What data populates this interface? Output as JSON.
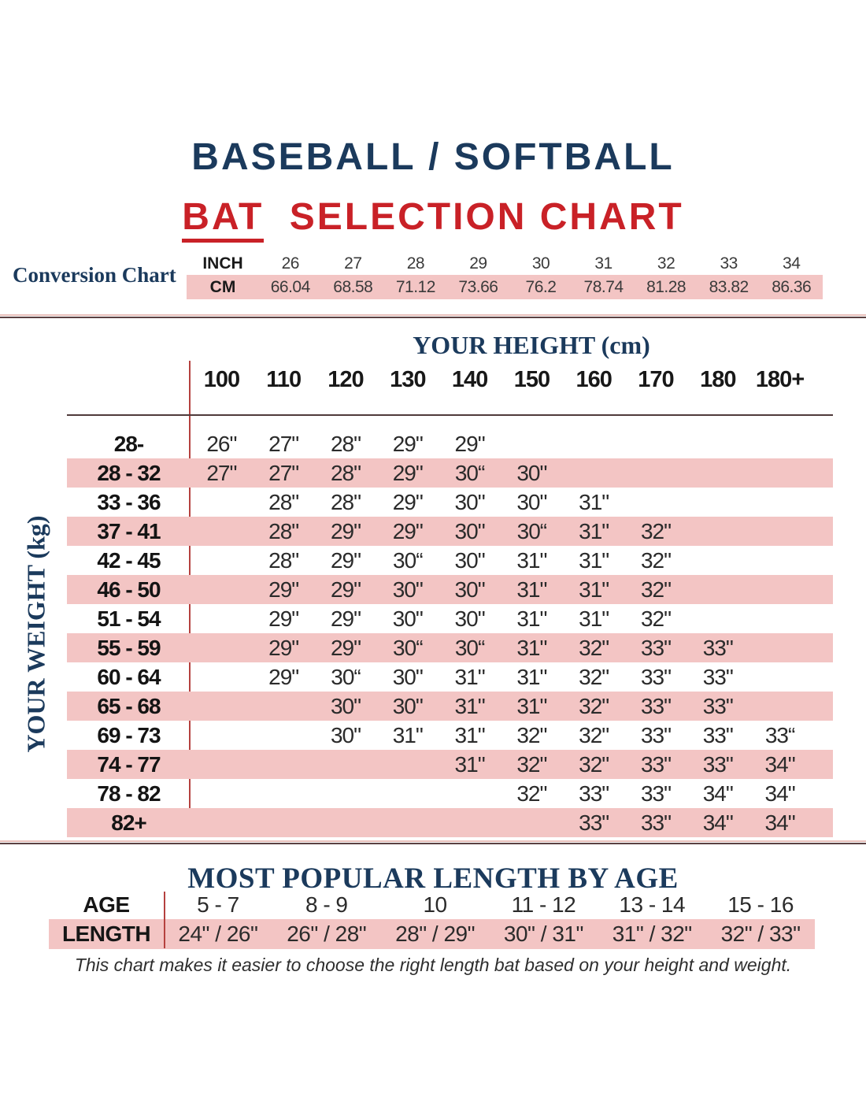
{
  "title": {
    "line1": "BASEBALL / SOFTBALL",
    "line2_highlight": "BAT",
    "line2_rest": "SELECTION CHART"
  },
  "chart_data": [
    {
      "type": "table",
      "title": "Conversion Chart",
      "row_labels": [
        "INCH",
        "CM"
      ],
      "inch": [
        "26",
        "27",
        "28",
        "29",
        "30",
        "31",
        "32",
        "33",
        "34"
      ],
      "cm": [
        "66.04",
        "68.58",
        "71.12",
        "73.66",
        "76.2",
        "78.74",
        "81.28",
        "83.82",
        "86.36"
      ]
    },
    {
      "type": "table",
      "title": "Bat length by height and weight",
      "x_axis_label": "YOUR HEIGHT (cm)",
      "y_axis_label": "YOUR WEIGHT (kg)",
      "columns": [
        "100",
        "110",
        "120",
        "130",
        "140",
        "150",
        "160",
        "170",
        "180",
        "180+"
      ],
      "rows": [
        {
          "label": "28-",
          "values": [
            "26\"",
            "27\"",
            "28\"",
            "29\"",
            "29\"",
            "",
            "",
            "",
            "",
            ""
          ]
        },
        {
          "label": "28 - 32",
          "values": [
            "27\"",
            "27\"",
            "28\"",
            "29\"",
            "30“",
            "30\"",
            "",
            "",
            "",
            ""
          ]
        },
        {
          "label": "33 - 36",
          "values": [
            "",
            "28\"",
            "28\"",
            "29\"",
            "30\"",
            "30\"",
            "31\"",
            "",
            "",
            ""
          ]
        },
        {
          "label": "37 - 41",
          "values": [
            "",
            "28\"",
            "29\"",
            "29\"",
            "30\"",
            "30“",
            "31\"",
            "32\"",
            "",
            ""
          ]
        },
        {
          "label": "42 - 45",
          "values": [
            "",
            "28\"",
            "29\"",
            "30“",
            "30\"",
            "31\"",
            "31\"",
            "32\"",
            "",
            ""
          ]
        },
        {
          "label": "46 - 50",
          "values": [
            "",
            "29\"",
            "29\"",
            "30\"",
            "30\"",
            "31\"",
            "31\"",
            "32\"",
            "",
            ""
          ]
        },
        {
          "label": "51 - 54",
          "values": [
            "",
            "29\"",
            "29\"",
            "30\"",
            "30\"",
            "31\"",
            "31\"",
            "32\"",
            "",
            ""
          ]
        },
        {
          "label": "55 - 59",
          "values": [
            "",
            "29\"",
            "29\"",
            "30“",
            "30“",
            "31\"",
            "32\"",
            "33\"",
            "33\"",
            ""
          ]
        },
        {
          "label": "60 - 64",
          "values": [
            "",
            "29\"",
            "30“",
            "30\"",
            "31\"",
            "31\"",
            "32\"",
            "33\"",
            "33\"",
            ""
          ]
        },
        {
          "label": "65 - 68",
          "values": [
            "",
            "",
            "30\"",
            "30\"",
            "31\"",
            "31\"",
            "32\"",
            "33\"",
            "33\"",
            ""
          ]
        },
        {
          "label": "69 - 73",
          "values": [
            "",
            "",
            "30\"",
            "31\"",
            "31\"",
            "32\"",
            "32\"",
            "33\"",
            "33\"",
            "33“"
          ]
        },
        {
          "label": "74 - 77",
          "values": [
            "",
            "",
            "",
            "",
            "31\"",
            "32\"",
            "32\"",
            "33\"",
            "33\"",
            "34\""
          ]
        },
        {
          "label": "78 - 82",
          "values": [
            "",
            "",
            "",
            "",
            "",
            "32\"",
            "33\"",
            "33\"",
            "34\"",
            "34\""
          ]
        },
        {
          "label": "82+",
          "values": [
            "",
            "",
            "",
            "",
            "",
            "",
            "33\"",
            "33\"",
            "34\"",
            "34\""
          ]
        }
      ]
    },
    {
      "type": "table",
      "title": "MOST POPULAR LENGTH BY AGE",
      "row_labels": [
        "AGE",
        "LENGTH"
      ],
      "ages": [
        "5 - 7",
        "8 - 9",
        "10",
        "11 - 12",
        "13 - 14",
        "15 - 16"
      ],
      "lengths": [
        "24\" / 26\"",
        "26\" / 28\"",
        "28\" / 29\"",
        "30\" / 31\"",
        "31\" / 32\"",
        "32\" / 33\""
      ]
    }
  ],
  "footer": "This chart makes it easier to choose the right length bat based on your height and weight.",
  "colors": {
    "navy": "#1b3a5c",
    "red": "#c92127",
    "pink": "#f3c5c4",
    "dark_line": "#4f3a3b",
    "red_line": "#b5413f"
  }
}
